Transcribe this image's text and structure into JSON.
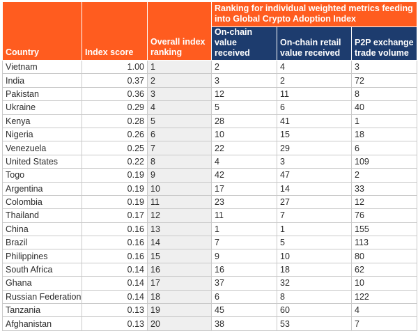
{
  "table": {
    "headers": {
      "country": "Country",
      "index_score": "Index score",
      "overall_ranking": "Overall index ranking",
      "group_title": "Ranking for individual weighted metrics feeding into Global Crypto Adoption Index",
      "onchain_value": "On-chain value received",
      "onchain_retail": "On-chain retail value received",
      "p2p_volume": "P2P exchange trade volume"
    },
    "rows": [
      {
        "country": "Vietnam",
        "score": "1.00",
        "rank": "1",
        "onchain": "2",
        "retail": "4",
        "p2p": "3"
      },
      {
        "country": "India",
        "score": "0.37",
        "rank": "2",
        "onchain": "3",
        "retail": "2",
        "p2p": "72"
      },
      {
        "country": "Pakistan",
        "score": "0.36",
        "rank": "3",
        "onchain": "12",
        "retail": "11",
        "p2p": "8"
      },
      {
        "country": "Ukraine",
        "score": "0.29",
        "rank": "4",
        "onchain": "5",
        "retail": "6",
        "p2p": "40"
      },
      {
        "country": "Kenya",
        "score": "0.28",
        "rank": "5",
        "onchain": "28",
        "retail": "41",
        "p2p": "1"
      },
      {
        "country": "Nigeria",
        "score": "0.26",
        "rank": "6",
        "onchain": "10",
        "retail": "15",
        "p2p": "18"
      },
      {
        "country": "Venezuela",
        "score": "0.25",
        "rank": "7",
        "onchain": "22",
        "retail": "29",
        "p2p": "6"
      },
      {
        "country": "United States",
        "score": "0.22",
        "rank": "8",
        "onchain": "4",
        "retail": "3",
        "p2p": "109"
      },
      {
        "country": "Togo",
        "score": "0.19",
        "rank": "9",
        "onchain": "42",
        "retail": "47",
        "p2p": "2"
      },
      {
        "country": "Argentina",
        "score": "0.19",
        "rank": "10",
        "onchain": "17",
        "retail": "14",
        "p2p": "33"
      },
      {
        "country": "Colombia",
        "score": "0.19",
        "rank": "11",
        "onchain": "23",
        "retail": "27",
        "p2p": "12"
      },
      {
        "country": "Thailand",
        "score": "0.17",
        "rank": "12",
        "onchain": "11",
        "retail": "7",
        "p2p": "76"
      },
      {
        "country": "China",
        "score": "0.16",
        "rank": "13",
        "onchain": "1",
        "retail": "1",
        "p2p": "155"
      },
      {
        "country": "Brazil",
        "score": "0.16",
        "rank": "14",
        "onchain": "7",
        "retail": "5",
        "p2p": "113"
      },
      {
        "country": "Philippines",
        "score": "0.16",
        "rank": "15",
        "onchain": "9",
        "retail": "10",
        "p2p": "80"
      },
      {
        "country": "South Africa",
        "score": "0.14",
        "rank": "16",
        "onchain": "16",
        "retail": "18",
        "p2p": "62"
      },
      {
        "country": "Ghana",
        "score": "0.14",
        "rank": "17",
        "onchain": "37",
        "retail": "32",
        "p2p": "10"
      },
      {
        "country": "Russian Federation",
        "score": "0.14",
        "rank": "18",
        "onchain": "6",
        "retail": "8",
        "p2p": "122"
      },
      {
        "country": "Tanzania",
        "score": "0.13",
        "rank": "19",
        "onchain": "45",
        "retail": "60",
        "p2p": "4"
      },
      {
        "country": "Afghanistan",
        "score": "0.13",
        "rank": "20",
        "onchain": "38",
        "retail": "53",
        "p2p": "7"
      }
    ]
  }
}
